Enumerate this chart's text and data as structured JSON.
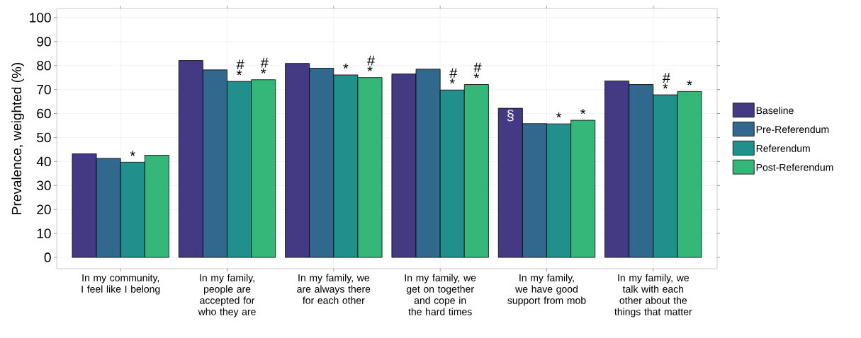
{
  "chart_data": {
    "type": "bar",
    "ylabel": "Prevalence, weighted (%)",
    "categories": [
      "In my community, I feel like I belong",
      "In my family, people are accepted for who they are",
      "In my family, we are always there for each other",
      "In my family, we get on together and cope in the hard times",
      "In my family, we have good support from mob",
      "In my family, we talk with each other about the things that matter"
    ],
    "series": [
      {
        "name": "Baseline",
        "color": "#443a83",
        "values": [
          43.2,
          82.1,
          80.9,
          76.5,
          62.2,
          73.6
        ],
        "value_labels": [
          null,
          null,
          null,
          null,
          "§",
          null
        ]
      },
      {
        "name": "Pre-Referendum",
        "color": "#31688e",
        "values": [
          41.3,
          78.2,
          78.9,
          78.5,
          55.8,
          72.1
        ],
        "value_labels": [
          null,
          null,
          null,
          null,
          null,
          null
        ]
      },
      {
        "name": "Referendum",
        "color": "#21908c",
        "values": [
          39.7,
          73.4,
          76.1,
          69.8,
          55.7,
          67.8
        ],
        "value_labels": [
          "*",
          "# *",
          "*",
          "# *",
          "*",
          "# *"
        ]
      },
      {
        "name": "Post-Referendum",
        "color": "#35b779",
        "values": [
          42.6,
          74.1,
          75.0,
          72.1,
          57.2,
          69.2
        ],
        "value_labels": [
          null,
          "# *",
          "# *",
          "# *",
          "*",
          "*"
        ]
      }
    ],
    "ylim": [
      -4.7,
      103.8
    ],
    "yticks": [
      0,
      10,
      20,
      30,
      40,
      50,
      60,
      70,
      80,
      90,
      100
    ],
    "grid": true,
    "legend": "right"
  }
}
